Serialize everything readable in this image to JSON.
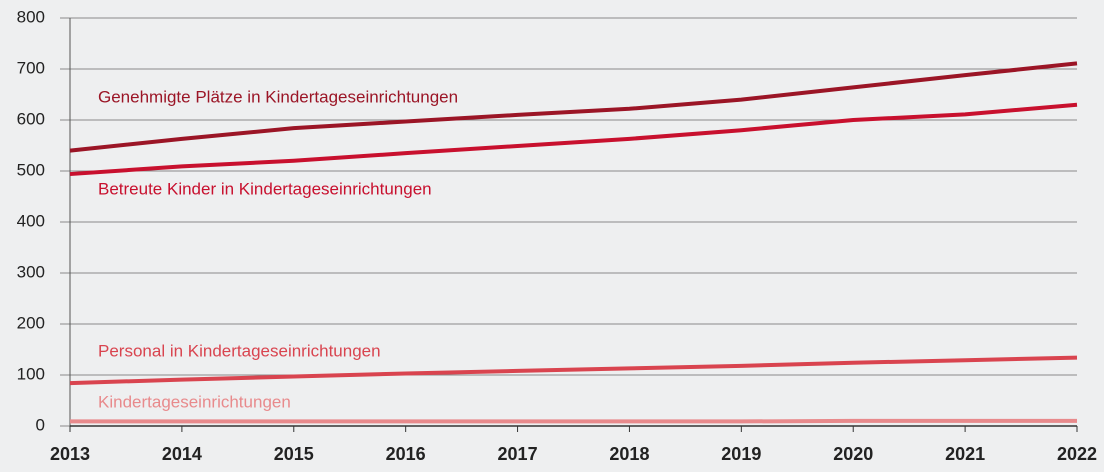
{
  "chart_data": {
    "type": "line",
    "x": [
      "2013",
      "2014",
      "2015",
      "2016",
      "2017",
      "2018",
      "2019",
      "2020",
      "2021",
      "2022"
    ],
    "series": [
      {
        "name": "Genehmigte Plätze in Kindertageseinrichtungen",
        "color": "#9b1526",
        "values": [
          540,
          563,
          584,
          597,
          610,
          622,
          640,
          664,
          688,
          711
        ]
      },
      {
        "name": "Betreute Kinder in Kindertageseinrichtungen",
        "color": "#c8102e",
        "values": [
          494,
          509,
          520,
          535,
          549,
          563,
          580,
          600,
          611,
          630
        ]
      },
      {
        "name": "Personal in Kindertageseinrichtungen",
        "color": "#d9444f",
        "values": [
          84,
          91,
          97,
          103,
          108,
          113,
          118,
          124,
          129,
          134
        ]
      },
      {
        "name": "Kindertageseinrichtungen",
        "color": "#e88a8c",
        "values": [
          9,
          9,
          9,
          9,
          9,
          9,
          9,
          10,
          10,
          10
        ]
      }
    ],
    "ylim": [
      0,
      800
    ],
    "yticks": [
      0,
      100,
      200,
      300,
      400,
      500,
      600,
      700,
      800
    ],
    "grid": true
  }
}
